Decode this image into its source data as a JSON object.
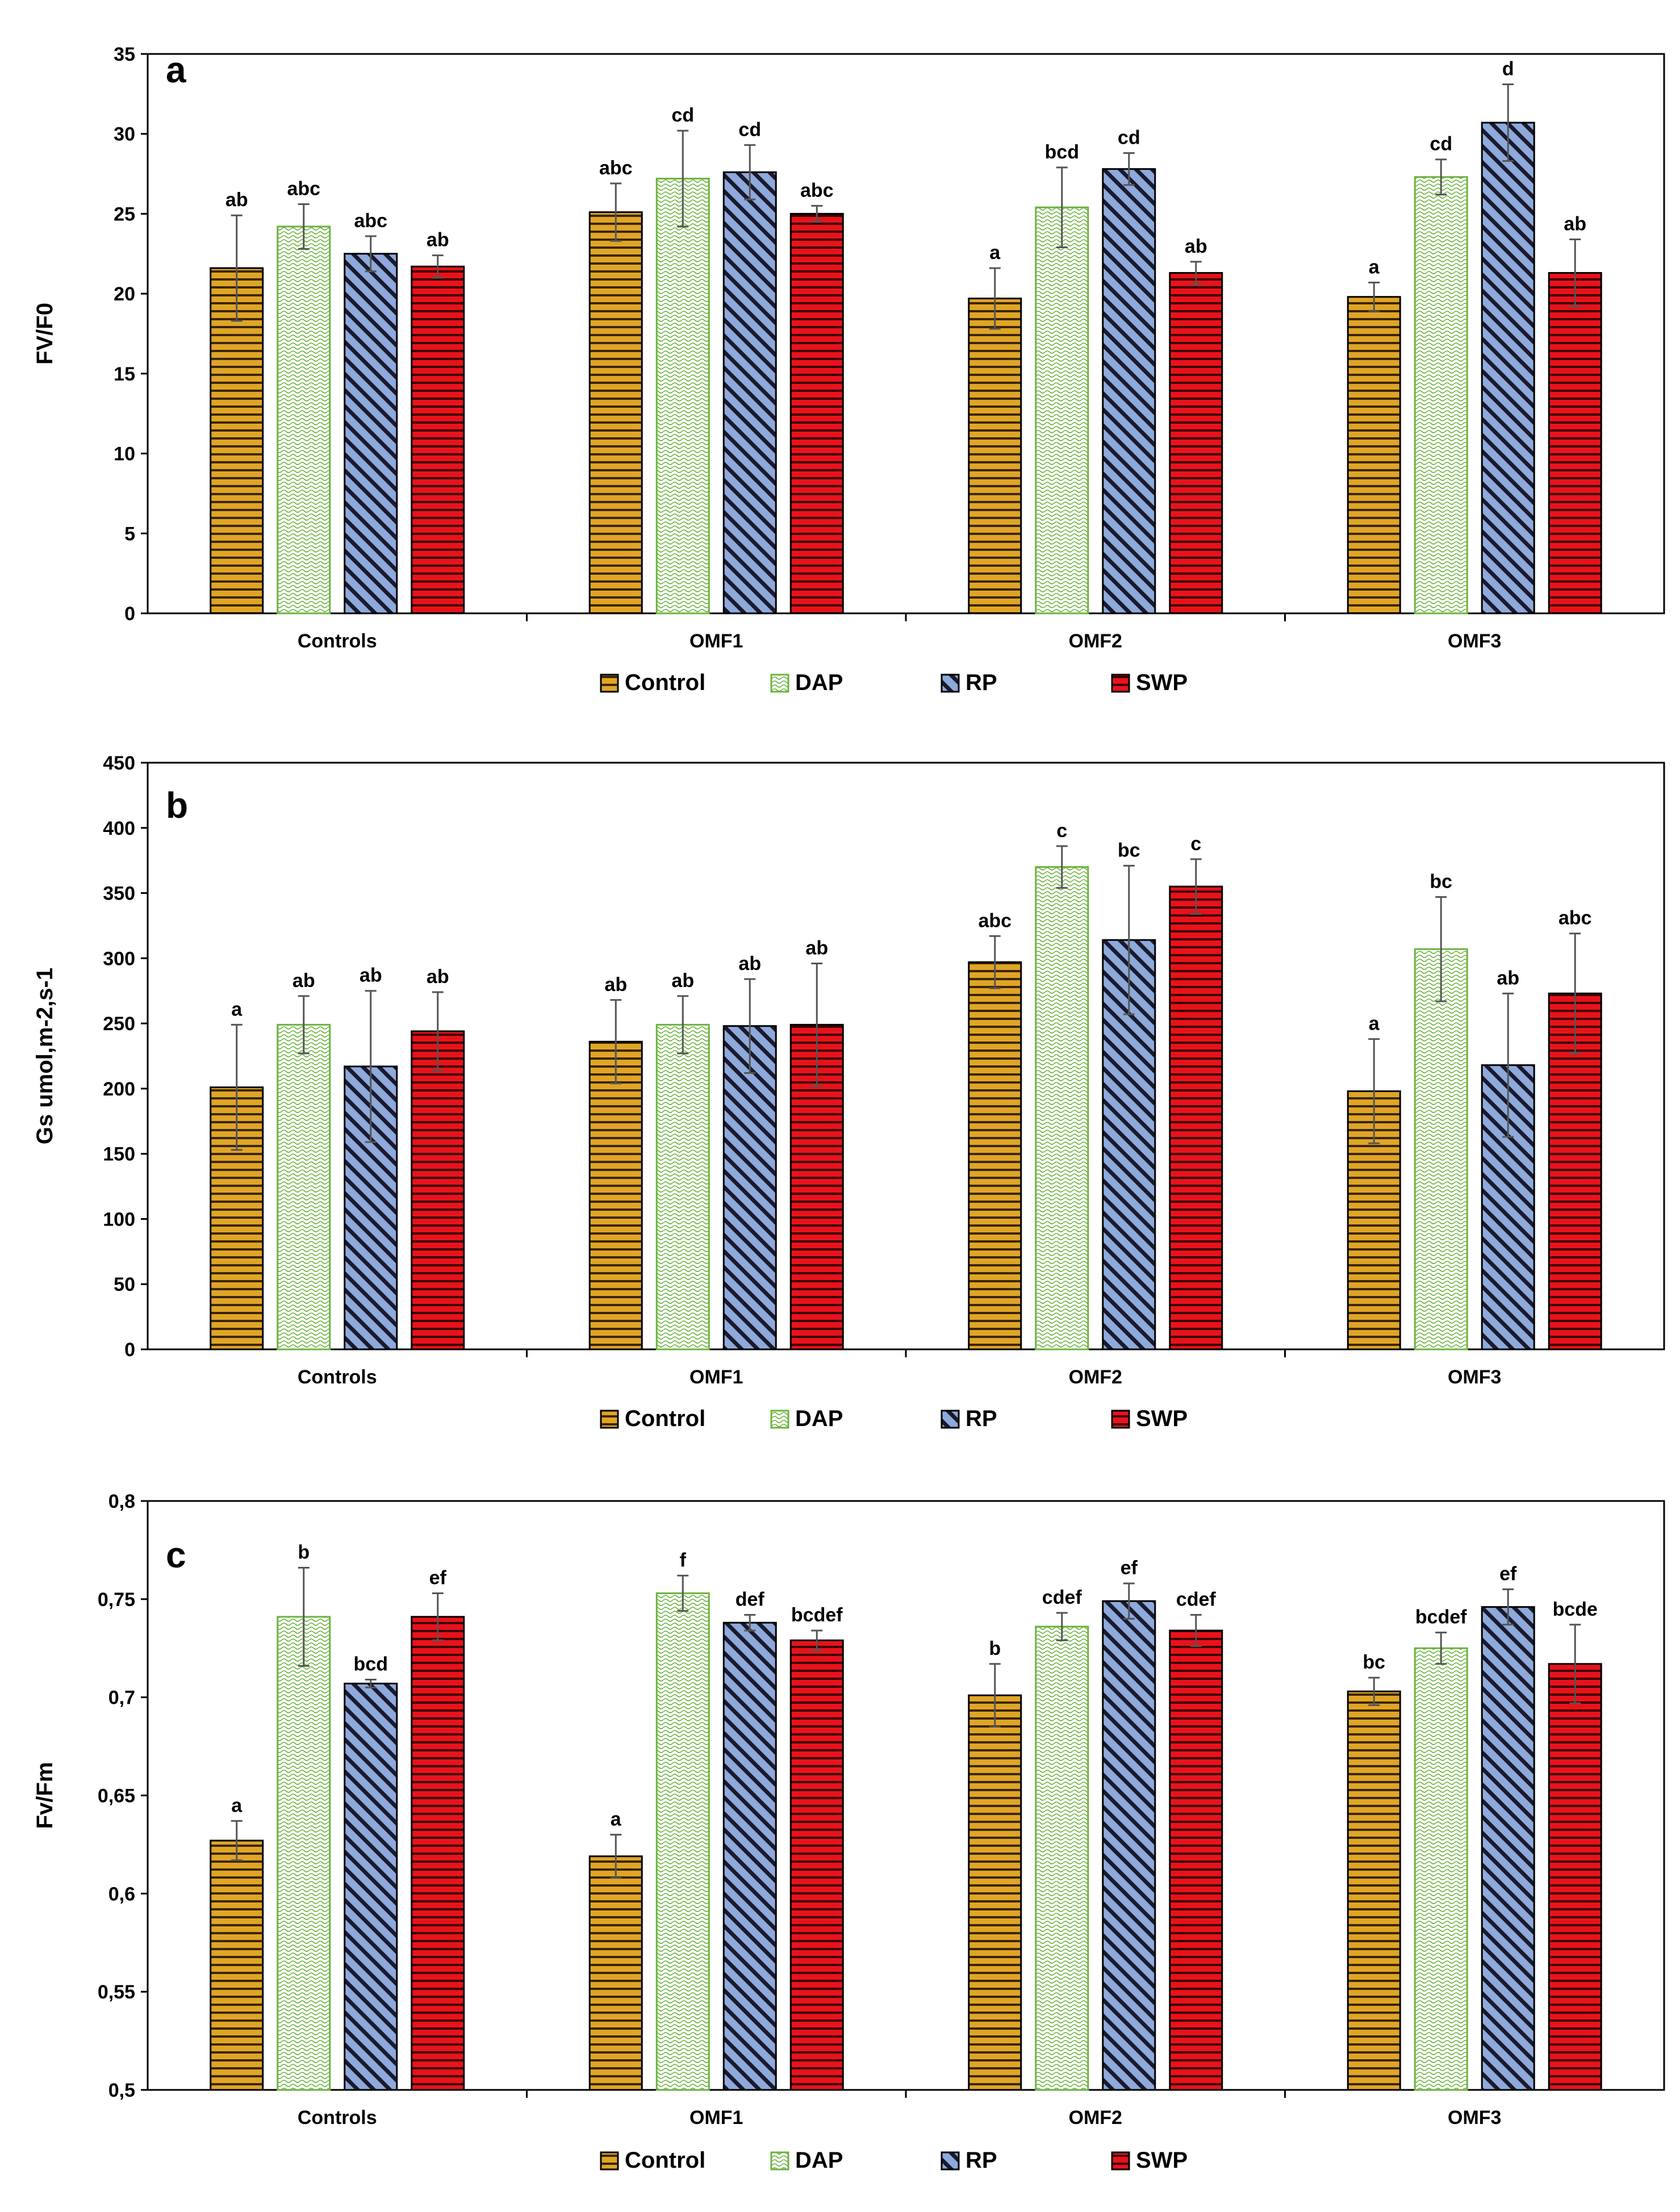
{
  "colors": {
    "control": "#e0a526",
    "control_stripe": "#3a2608",
    "dap_fill": "#ffffff",
    "dap_stroke": "#6cb33f",
    "rp": "#8ea9db",
    "rp_stripe": "#1a1a2e",
    "swp": "#e8121b",
    "swp_stripe": "#3a0000",
    "axis": "#000000",
    "error_bar": "#555555"
  },
  "chart_data": [
    {
      "type": "bar",
      "panel_label": "a",
      "title": "",
      "xlabel": "",
      "ylabel": "FV/F0",
      "ylim": [
        0,
        35
      ],
      "yticks": [
        0,
        5,
        10,
        15,
        20,
        25,
        30,
        35
      ],
      "ytick_labels": [
        "0",
        "5",
        "10",
        "15",
        "20",
        "25",
        "30",
        "35"
      ],
      "categories": [
        "Controls",
        "OMF1",
        "OMF2",
        "OMF3"
      ],
      "legend": [
        "Control",
        "DAP",
        "RP",
        "SWP"
      ],
      "legend_position": "bottom",
      "series": [
        {
          "name": "Control",
          "values": [
            21.6,
            25.1,
            19.7,
            19.8
          ],
          "errors": [
            3.3,
            1.8,
            1.9,
            0.9
          ],
          "letters": [
            "ab",
            "abc",
            "a",
            "a"
          ]
        },
        {
          "name": "DAP",
          "values": [
            24.2,
            27.2,
            25.4,
            27.3
          ],
          "errors": [
            1.4,
            3.0,
            2.5,
            1.1
          ],
          "letters": [
            "abc",
            "cd",
            "bcd",
            "cd"
          ]
        },
        {
          "name": "RP",
          "values": [
            22.5,
            27.6,
            27.8,
            30.7
          ],
          "errors": [
            1.1,
            1.7,
            1.0,
            2.4
          ],
          "letters": [
            "abc",
            "cd",
            "cd",
            "d"
          ]
        },
        {
          "name": "SWP",
          "values": [
            21.7,
            25.0,
            21.3,
            21.3
          ],
          "errors": [
            0.7,
            0.5,
            0.7,
            2.1
          ],
          "letters": [
            "ab",
            "abc",
            "ab",
            "ab"
          ]
        }
      ]
    },
    {
      "type": "bar",
      "panel_label": "b",
      "title": "",
      "xlabel": "",
      "ylabel": "Gs umol,m-2,s-1",
      "ylim": [
        0,
        450
      ],
      "yticks": [
        0,
        50,
        100,
        150,
        200,
        250,
        300,
        350,
        400,
        450
      ],
      "ytick_labels": [
        "0",
        "50",
        "100",
        "150",
        "200",
        "250",
        "300",
        "350",
        "400",
        "450"
      ],
      "categories": [
        "Controls",
        "OMF1",
        "OMF2",
        "OMF3"
      ],
      "legend": [
        "Control",
        "DAP",
        "RP",
        "SWP"
      ],
      "legend_position": "bottom",
      "series": [
        {
          "name": "Control",
          "values": [
            201,
            236,
            297,
            198
          ],
          "errors": [
            48,
            32,
            20,
            40
          ],
          "letters": [
            "a",
            "ab",
            "abc",
            "a"
          ]
        },
        {
          "name": "DAP",
          "values": [
            249,
            249,
            370,
            307
          ],
          "errors": [
            22,
            22,
            16,
            40
          ],
          "letters": [
            "ab",
            "ab",
            "c",
            "bc"
          ]
        },
        {
          "name": "RP",
          "values": [
            217,
            248,
            314,
            218
          ],
          "errors": [
            58,
            36,
            57,
            55
          ],
          "letters": [
            "ab",
            "ab",
            "bc",
            "ab"
          ]
        },
        {
          "name": "SWP",
          "values": [
            244,
            249,
            355,
            273
          ],
          "errors": [
            30,
            47,
            21,
            46
          ],
          "letters": [
            "ab",
            "ab",
            "c",
            "abc"
          ]
        }
      ]
    },
    {
      "type": "bar",
      "panel_label": "c",
      "title": "",
      "xlabel": "",
      "ylabel": "Fv/Fm",
      "ylim": [
        0.5,
        0.8
      ],
      "yticks": [
        0.5,
        0.55,
        0.6,
        0.65,
        0.7,
        0.75,
        0.8
      ],
      "ytick_labels": [
        "0,5",
        "0,55",
        "0,6",
        "0,65",
        "0,7",
        "0,75",
        "0,8"
      ],
      "categories": [
        "Controls",
        "OMF1",
        "OMF2",
        "OMF3"
      ],
      "legend": [
        "Control",
        "DAP",
        "RP",
        "SWP"
      ],
      "legend_position": "bottom",
      "series": [
        {
          "name": "Control",
          "values": [
            0.627,
            0.619,
            0.701,
            0.703
          ],
          "errors": [
            0.01,
            0.011,
            0.016,
            0.007
          ],
          "letters": [
            "a",
            "a",
            "b",
            "bc"
          ]
        },
        {
          "name": "DAP",
          "values": [
            0.741,
            0.753,
            0.736,
            0.725
          ],
          "errors": [
            0.025,
            0.009,
            0.007,
            0.008
          ],
          "letters": [
            "b",
            "f",
            "cdef",
            "bcdef"
          ]
        },
        {
          "name": "RP",
          "values": [
            0.707,
            0.738,
            0.749,
            0.746
          ],
          "errors": [
            0.002,
            0.004,
            0.009,
            0.009
          ],
          "letters": [
            "bcd",
            "def",
            "ef",
            "ef"
          ]
        },
        {
          "name": "SWP",
          "values": [
            0.741,
            0.729,
            0.734,
            0.717
          ],
          "errors": [
            0.012,
            0.005,
            0.008,
            0.02
          ],
          "letters": [
            "ef",
            "bcdef",
            "cdef",
            "bcde"
          ]
        }
      ]
    }
  ]
}
